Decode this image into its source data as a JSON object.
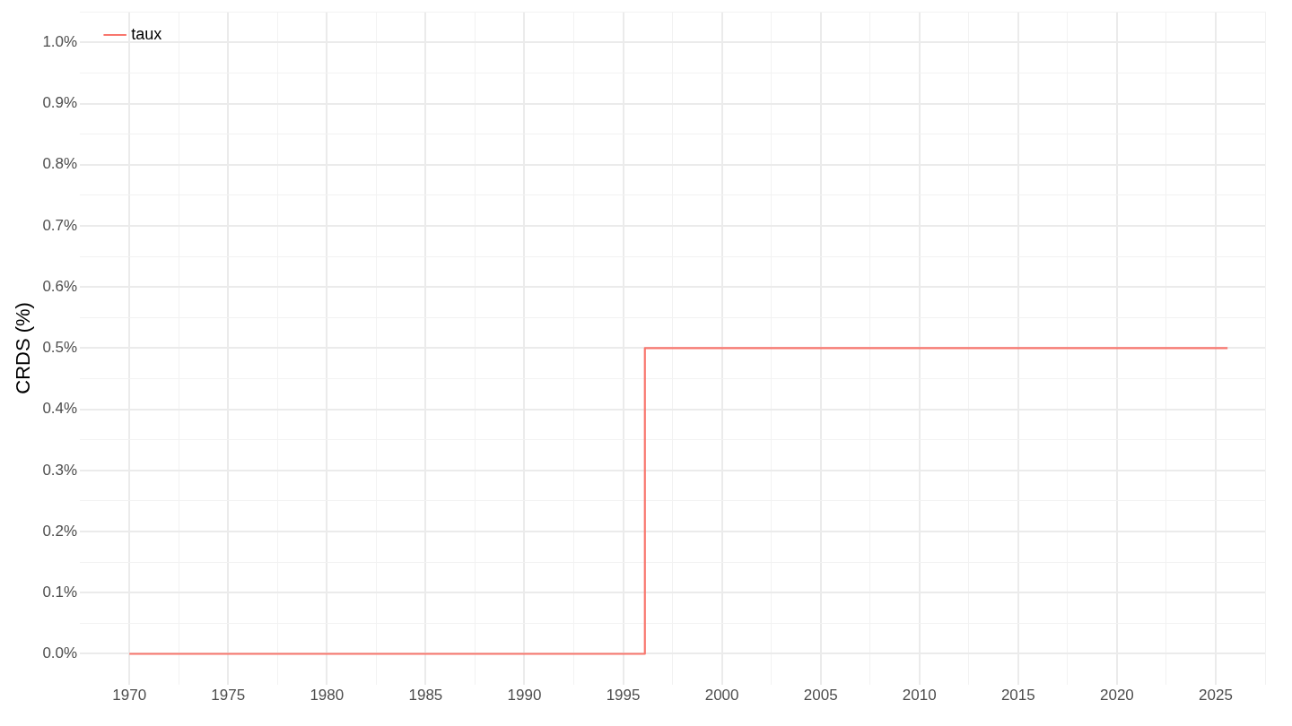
{
  "chart_data": {
    "type": "step",
    "ylabel": "CRDS (%)",
    "x": [
      1970,
      1996.1,
      2025.6
    ],
    "series": [
      {
        "name": "taux",
        "color": "#f8766d",
        "values": [
          0,
          0.5,
          0.5
        ]
      }
    ],
    "xlim": [
      1967.5,
      2027.5
    ],
    "xticks": [
      1970,
      {
        "value": 1972.5,
        "label": null
      },
      1975,
      {
        "value": 1977.5,
        "label": null
      },
      1980,
      {
        "value": 1982.5,
        "label": null
      },
      1985,
      {
        "value": 1987.5,
        "label": null
      },
      1990,
      {
        "value": 1992.5,
        "label": null
      },
      1995,
      {
        "value": 1997.5,
        "label": null
      },
      2000,
      {
        "value": 2002.5,
        "label": null
      },
      2005,
      {
        "value": 2007.5,
        "label": null
      },
      2010,
      {
        "value": 2012.5,
        "label": null
      },
      2015,
      {
        "value": 2017.5,
        "label": null
      },
      2020,
      {
        "value": 2022.5,
        "label": null
      },
      2025,
      {
        "value": 2027.5,
        "label": null
      }
    ],
    "ylim": [
      -0.05,
      1.05
    ],
    "yticks": [
      {
        "value": 0,
        "label": "0.0%"
      },
      {
        "value": 0.05,
        "label": null
      },
      {
        "value": 0.1,
        "label": "0.1%"
      },
      {
        "value": 0.15,
        "label": null
      },
      {
        "value": 0.2,
        "label": "0.2%"
      },
      {
        "value": 0.25,
        "label": null
      },
      {
        "value": 0.3,
        "label": "0.3%"
      },
      {
        "value": 0.35,
        "label": null
      },
      {
        "value": 0.4,
        "label": "0.4%"
      },
      {
        "value": 0.45,
        "label": null
      },
      {
        "value": 0.5,
        "label": "0.5%"
      },
      {
        "value": 0.55,
        "label": null
      },
      {
        "value": 0.6,
        "label": "0.6%"
      },
      {
        "value": 0.65,
        "label": null
      },
      {
        "value": 0.7,
        "label": "0.7%"
      },
      {
        "value": 0.75,
        "label": null
      },
      {
        "value": 0.8,
        "label": "0.8%"
      },
      {
        "value": 0.85,
        "label": null
      },
      {
        "value": 0.9,
        "label": "0.9%"
      },
      {
        "value": 0.95,
        "label": null
      },
      {
        "value": 1,
        "label": "1.0%"
      },
      {
        "value": 1.05,
        "label": null
      }
    ],
    "grid": true,
    "legend": "top left",
    "line_style": "solid",
    "marker": "none"
  }
}
